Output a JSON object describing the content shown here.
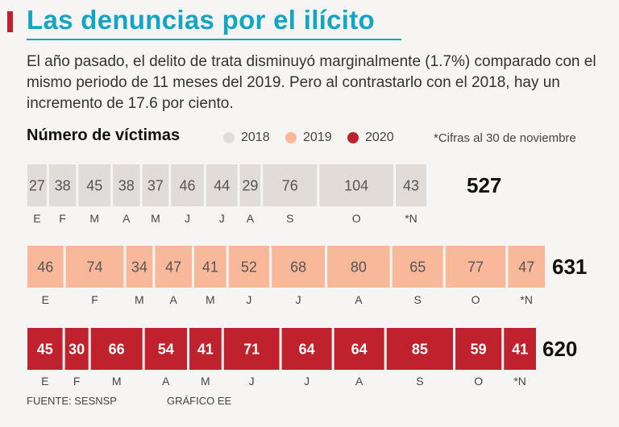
{
  "header": {
    "title": "Las denuncias por el ilícito",
    "subtitle": "El año pasado, el delito de trata disminuyó marginalmente (1.7%) comparado con el mismo periodo de 11 meses del 2019. Pero al contrastarlo con el 2018, hay un incremento de 17.6 por ciento."
  },
  "section_title": "Número de víctimas",
  "note": "*Cifras al 30 de noviembre",
  "footer": {
    "source": "FUENTE: SESNSP",
    "credit": "GRÁFICO EE"
  },
  "colors": {
    "accent": "#c0222d",
    "title": "#13a5c4",
    "y2018": "#e1dcd8",
    "y2019": "#f9b89a",
    "y2020": "#c0222d"
  },
  "chart_data": {
    "type": "bar",
    "title": "Número de víctimas",
    "layout": "stacked-horizontal",
    "categories": [
      "E",
      "F",
      "M",
      "A",
      "M",
      "J",
      "J",
      "A",
      "S",
      "O",
      "*N"
    ],
    "series": [
      {
        "name": "2018",
        "values": [
          27,
          38,
          45,
          38,
          37,
          46,
          44,
          29,
          76,
          104,
          43
        ],
        "total": "527",
        "color": "#e1dcd8",
        "text_color": "#555555",
        "bold": false
      },
      {
        "name": "2019",
        "values": [
          46,
          74,
          34,
          47,
          41,
          52,
          68,
          80,
          65,
          77,
          47
        ],
        "total": "631",
        "color": "#f9b89a",
        "text_color": "#555555",
        "bold": false
      },
      {
        "name": "2020",
        "values": [
          45,
          30,
          66,
          54,
          41,
          71,
          64,
          64,
          85,
          59,
          41
        ],
        "total": "620",
        "color": "#c0222d",
        "text_color": "#ffffff",
        "bold": true
      }
    ],
    "legend": [
      "2018",
      "2019",
      "2020"
    ]
  }
}
